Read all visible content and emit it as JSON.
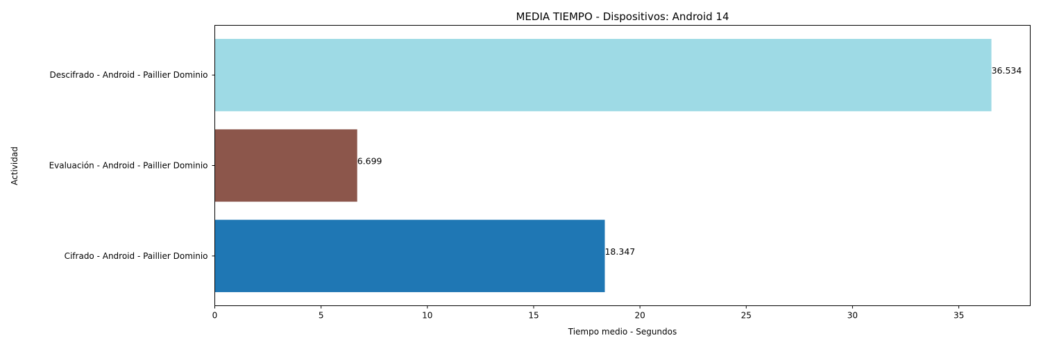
{
  "chart_data": {
    "type": "bar",
    "orientation": "horizontal",
    "title": "MEDIA TIEMPO - Dispositivos: Android 14",
    "xlabel": "Tiempo medio - Segundos",
    "ylabel": "Actividad",
    "xlim": [
      0,
      38.36
    ],
    "xticks": [
      0,
      5,
      10,
      15,
      20,
      25,
      30,
      35
    ],
    "grid": false,
    "legend": "none",
    "categories": [
      "Cifrado - Android - Paillier Dominio",
      "Evaluación - Android - Paillier Dominio",
      "Descifrado - Android - Paillier Dominio"
    ],
    "values": [
      18.347,
      6.699,
      36.534
    ],
    "value_labels": [
      "18.347",
      "6.699",
      "36.534"
    ],
    "colors": [
      "#1f77b4",
      "#8c564b",
      "#9edae5"
    ]
  }
}
